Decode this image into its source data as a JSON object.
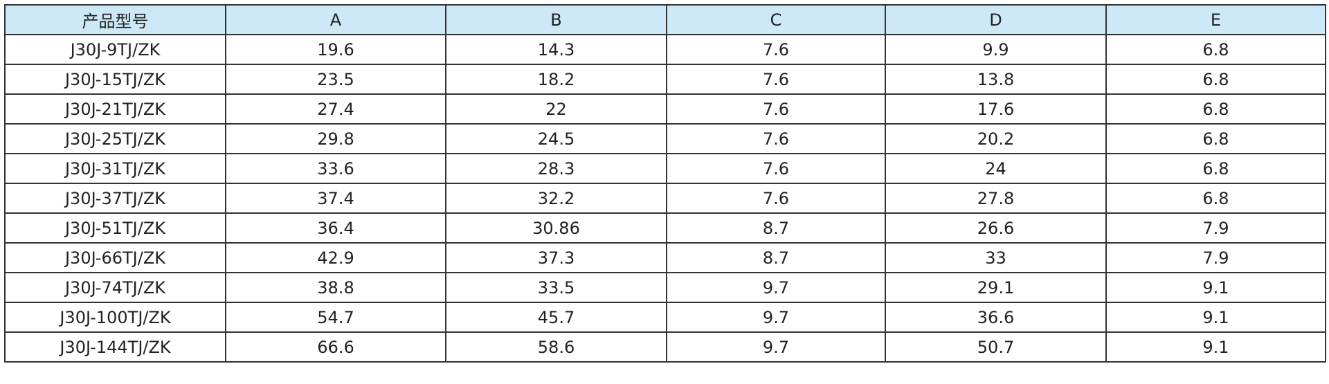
{
  "table": {
    "header": [
      "产品型号",
      "A",
      "B",
      "C",
      "D",
      "E"
    ],
    "rows": [
      [
        "J30J-9TJ/ZK",
        19.6,
        14.3,
        7.6,
        9.9,
        6.8
      ],
      [
        "J30J-15TJ/ZK",
        23.5,
        18.2,
        7.6,
        13.8,
        6.8
      ],
      [
        "J30J-21TJ/ZK",
        27.4,
        22,
        7.6,
        17.6,
        6.8
      ],
      [
        "J30J-25TJ/ZK",
        29.8,
        24.5,
        7.6,
        20.2,
        6.8
      ],
      [
        "J30J-31TJ/ZK",
        33.6,
        28.3,
        7.6,
        24,
        6.8
      ],
      [
        "J30J-37TJ/ZK",
        37.4,
        32.2,
        7.6,
        27.8,
        6.8
      ],
      [
        "J30J-51TJ/ZK",
        36.4,
        30.86,
        8.7,
        26.6,
        7.9
      ],
      [
        "J30J-66TJ/ZK",
        42.9,
        37.3,
        8.7,
        33,
        7.9
      ],
      [
        "J30J-74TJ/ZK",
        38.8,
        33.5,
        9.7,
        29.1,
        9.1
      ],
      [
        "J30J-100TJ/ZK",
        54.7,
        45.7,
        9.7,
        36.6,
        9.1
      ],
      [
        "J30J-144TJ/ZK",
        66.6,
        58.6,
        9.7,
        50.7,
        9.1
      ]
    ]
  }
}
